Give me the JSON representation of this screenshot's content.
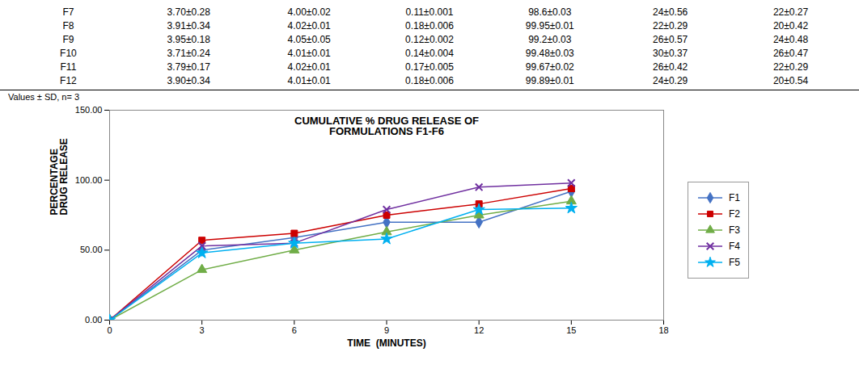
{
  "chart_data": {
    "type": "line",
    "title": "CUMULATIVE % DRUG RELEASE OF\nFORMULATIONS F1-F6",
    "x_label": "TIME  (MINUTES)",
    "y_label": "PERCENTAGE\nDRUG RELEASE",
    "x": [
      0,
      3,
      6,
      9,
      12,
      15
    ],
    "series": [
      {
        "name": "F1",
        "color": "#4472C4",
        "marker": "diamond",
        "values": [
          0,
          50,
          59,
          70,
          70,
          92
        ]
      },
      {
        "name": "F2",
        "color": "#CC0000",
        "marker": "square",
        "values": [
          0,
          57,
          62,
          75,
          83,
          94
        ]
      },
      {
        "name": "F3",
        "color": "#70AD47",
        "marker": "triangle",
        "values": [
          0,
          36,
          50,
          63,
          75,
          85
        ]
      },
      {
        "name": "F4",
        "color": "#7030A0",
        "marker": "times",
        "values": [
          0,
          53,
          55,
          79,
          95,
          98
        ]
      },
      {
        "name": "F5",
        "color": "#00B0F0",
        "marker": "star",
        "values": [
          0,
          48,
          55,
          58,
          79,
          80
        ]
      }
    ],
    "xlim": [
      0,
      18
    ],
    "xticks": [
      0,
      3,
      6,
      9,
      12,
      15,
      18
    ],
    "ylim": [
      0,
      150
    ],
    "yticks": [
      {
        "value": 0,
        "label": "0.00"
      },
      {
        "value": 50,
        "label": "50.00"
      },
      {
        "value": 100,
        "label": "100.00"
      },
      {
        "value": 150,
        "label": "150.00"
      }
    ],
    "grid": false,
    "legend": "right",
    "table": [
      [
        "F7",
        "3.70±0.28",
        "4.00±0.02",
        "0.11±0.001",
        "98.6±0.03",
        "24±0.56",
        "22±0.27"
      ],
      [
        "F8",
        "3.91±0.34",
        "4.02±0.01",
        "0.18±0.006",
        "99.95±0.01",
        "22±0.29",
        "20±0.42"
      ],
      [
        "F9",
        "3.95±0.18",
        "4.05±0.05",
        "0.12±0.002",
        "99.2±0.03",
        "26±0.57",
        "24±0.48"
      ],
      [
        "F10",
        "3.71±0.24",
        "4.01±0.01",
        "0.14±0.004",
        "99.48±0.03",
        "30±0.37",
        "26±0.47"
      ],
      [
        "F11",
        "3.79±0.17",
        "4.02±0.01",
        "0.17±0.005",
        "99.67±0.02",
        "26±0.42",
        "22±0.29"
      ],
      [
        "F12",
        "3.90±0.34",
        "4.01±0.01",
        "0.18±0.006",
        "99.89±0.01",
        "24±0.29",
        "20±0.54"
      ]
    ],
    "footnote": "Values ± SD, n= 3"
  }
}
